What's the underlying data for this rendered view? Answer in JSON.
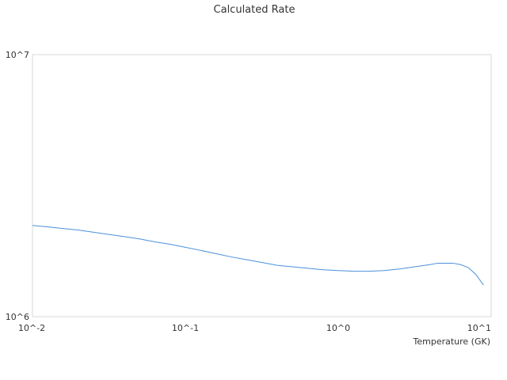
{
  "chart_data": {
    "type": "line",
    "title": "Calculated Rate",
    "xlabel": "Temperature (GK)",
    "ylabel": "",
    "x_scale": "log",
    "y_scale": "log",
    "xlim": [
      0.01,
      10
    ],
    "ylim": [
      1000000,
      10000000
    ],
    "x_tick_labels": [
      "10^-2",
      "10^-1",
      "10^0",
      "10^1"
    ],
    "x_tick_values": [
      0.01,
      0.1,
      1,
      10
    ],
    "y_tick_labels": [
      "10^6",
      "10^7"
    ],
    "y_tick_values": [
      1000000,
      10000000
    ],
    "grid": false,
    "series": [
      {
        "color": "#4a90d9",
        "x": [
          0.01,
          0.0126,
          0.0158,
          0.02,
          0.0251,
          0.0316,
          0.0398,
          0.0501,
          0.0631,
          0.0794,
          0.1,
          0.126,
          0.158,
          0.2,
          0.251,
          0.316,
          0.398,
          0.501,
          0.631,
          0.794,
          1.0,
          1.26,
          1.58,
          2.0,
          2.51,
          3.16,
          3.98,
          4.47,
          5.01,
          5.62,
          6.31,
          7.08,
          7.94,
          8.91
        ],
        "y": [
          2230000.0,
          2200000.0,
          2170000.0,
          2140000.0,
          2100000.0,
          2060000.0,
          2020000.0,
          1980000.0,
          1930000.0,
          1890000.0,
          1840000.0,
          1790000.0,
          1740000.0,
          1690000.0,
          1650000.0,
          1610000.0,
          1570000.0,
          1550000.0,
          1530000.0,
          1510000.0,
          1500000.0,
          1490000.0,
          1490000.0,
          1500000.0,
          1520000.0,
          1550000.0,
          1580000.0,
          1600000.0,
          1600000.0,
          1600000.0,
          1580000.0,
          1540000.0,
          1450000.0,
          1320000.0
        ]
      }
    ]
  }
}
